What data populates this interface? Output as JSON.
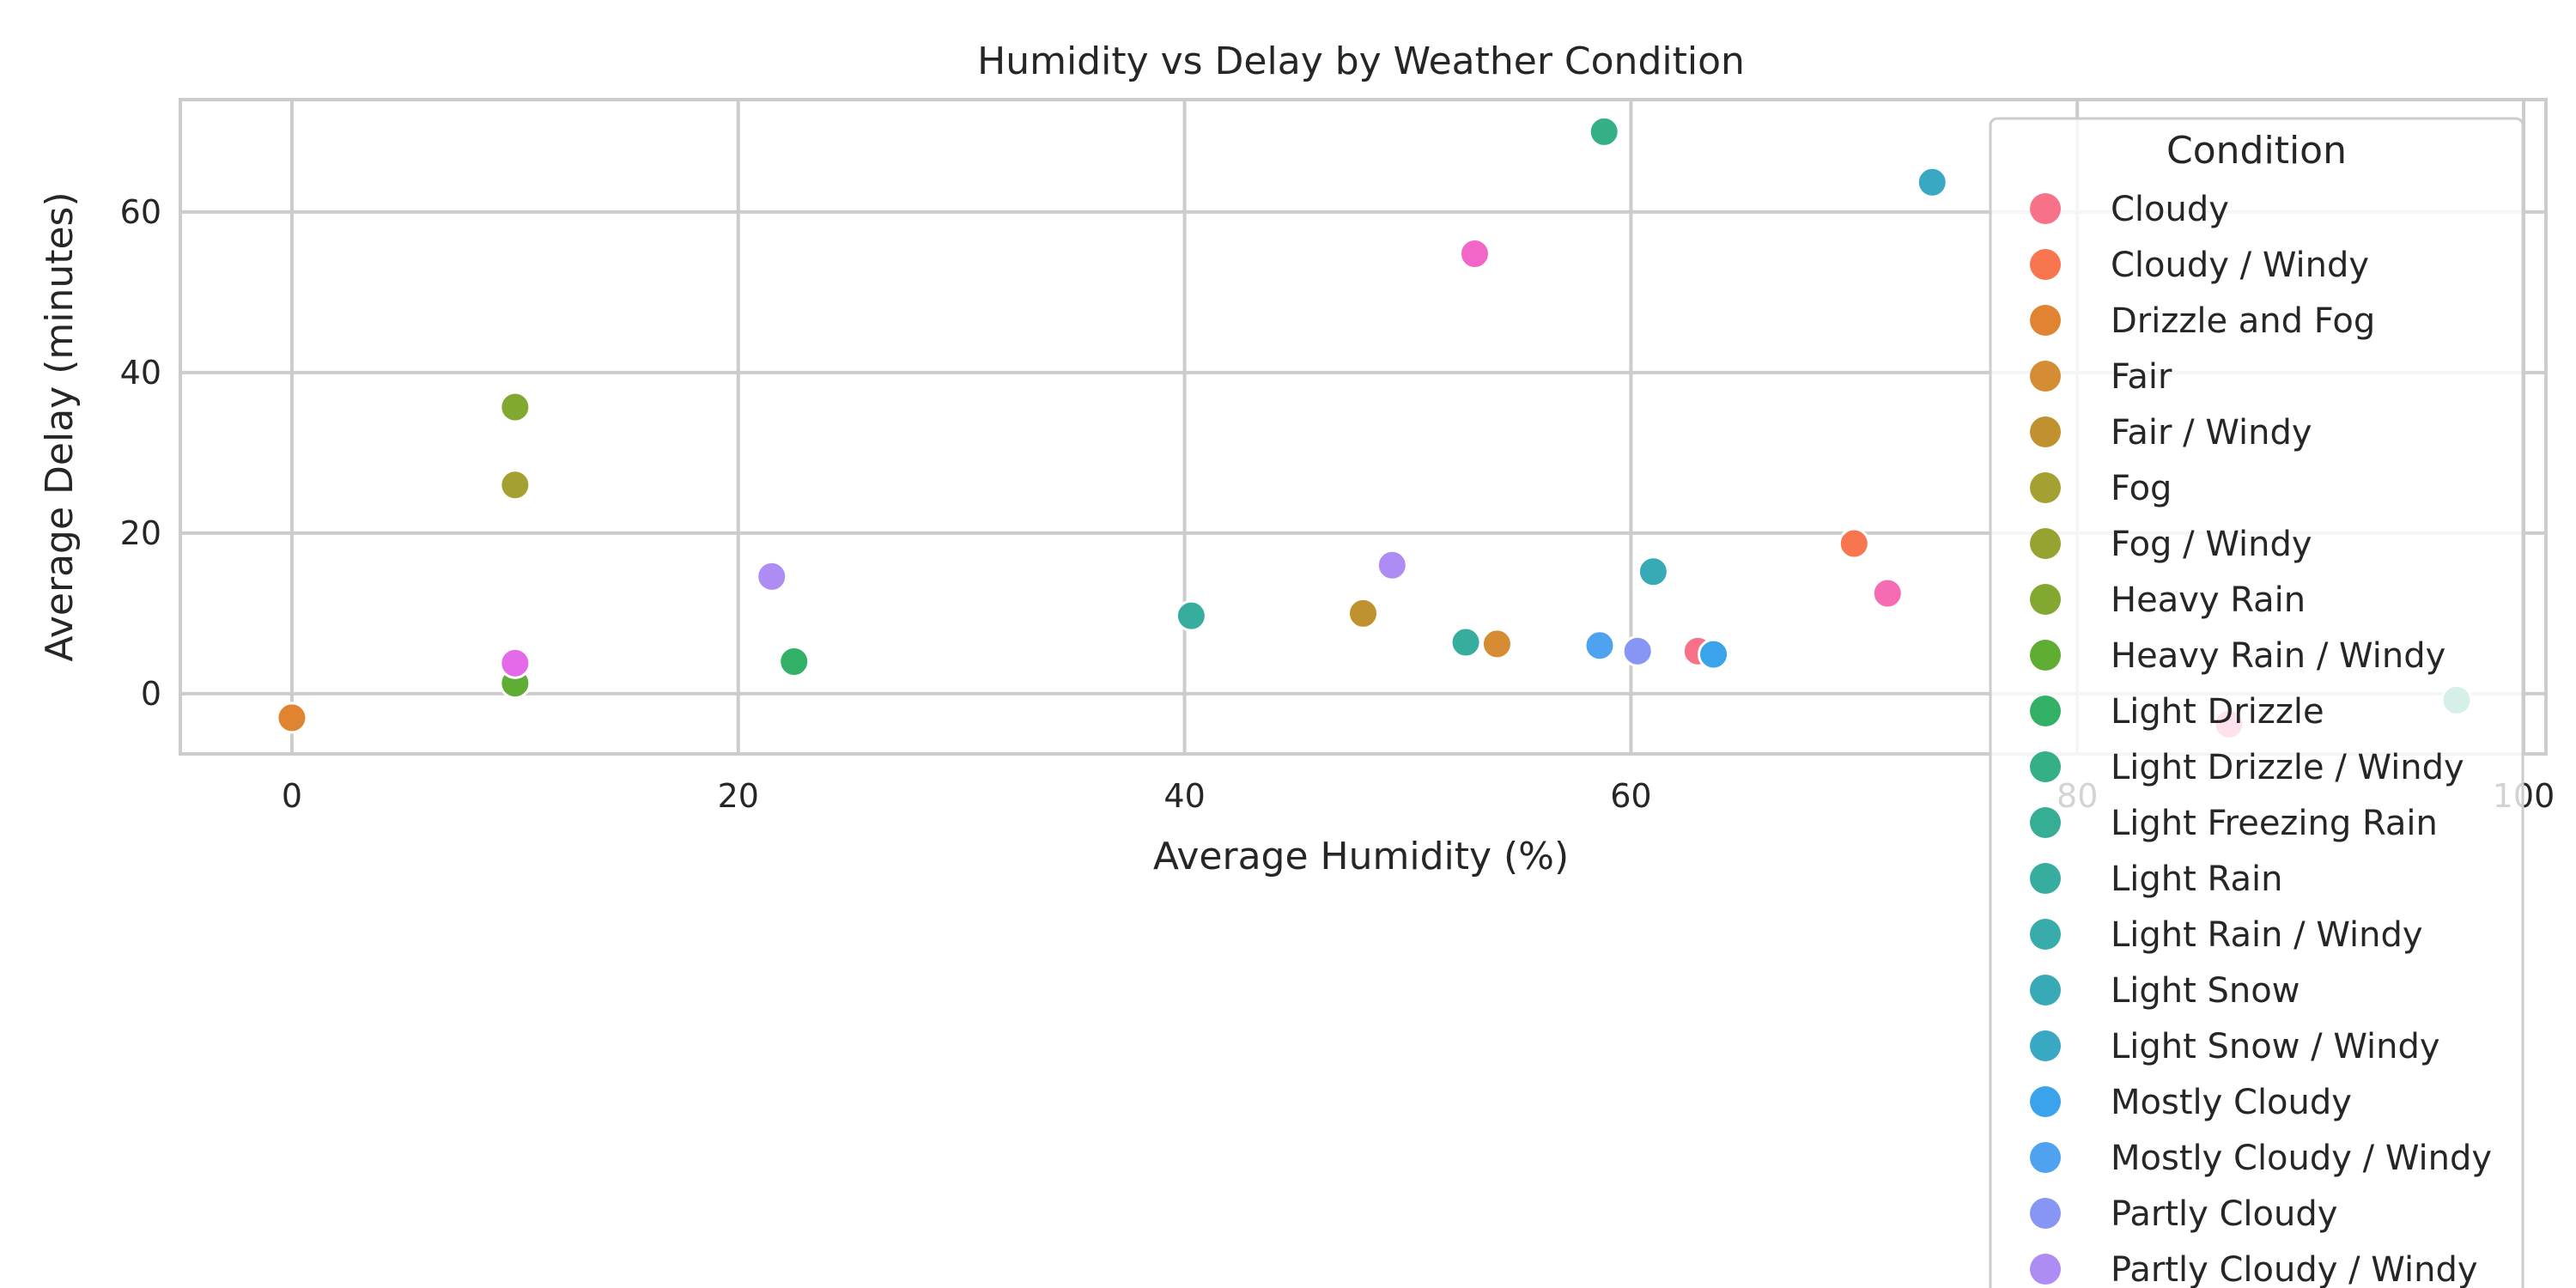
{
  "chart_data": {
    "type": "scatter",
    "title": "Humidity vs Delay by Weather Condition",
    "xlabel": "Average Humidity (%)",
    "ylabel": "Average Delay (minutes)",
    "xlim": [
      -5,
      101
    ],
    "ylim": [
      -7.5,
      74
    ],
    "x_ticks": [
      0,
      20,
      40,
      60,
      80,
      100
    ],
    "y_ticks": [
      0,
      20,
      40,
      60
    ],
    "grid": true,
    "legend_title": "Condition",
    "legend_position": "top-right, extending below the plot",
    "series": [
      {
        "name": "Cloudy",
        "color": "#f77189",
        "points": [
          [
            63,
            5.3
          ]
        ]
      },
      {
        "name": "Cloudy / Windy",
        "color": "#f7754f",
        "points": [
          [
            70,
            18.7
          ]
        ]
      },
      {
        "name": "Drizzle and Fog",
        "color": "#e18432",
        "points": [
          [
            0,
            -3
          ]
        ]
      },
      {
        "name": "Fair",
        "color": "#d58c32",
        "points": [
          [
            54,
            6.2
          ]
        ]
      },
      {
        "name": "Fair / Windy",
        "color": "#c0922f",
        "points": [
          [
            48,
            10
          ]
        ]
      },
      {
        "name": "Fog",
        "color": "#a4a031",
        "points": [
          [
            10,
            26
          ]
        ]
      },
      {
        "name": "Fog / Windy",
        "color": "#96a331",
        "points": []
      },
      {
        "name": "Heavy Rain",
        "color": "#83a831",
        "points": [
          [
            10,
            35.7
          ]
        ]
      },
      {
        "name": "Heavy Rain / Windy",
        "color": "#5fae33",
        "points": [
          [
            10,
            1.3
          ]
        ]
      },
      {
        "name": "Light Drizzle",
        "color": "#32b166",
        "points": [
          [
            22.5,
            4
          ]
        ]
      },
      {
        "name": "Light Drizzle / Windy",
        "color": "#34af86",
        "points": [
          [
            58.8,
            70
          ]
        ]
      },
      {
        "name": "Light Freezing Rain",
        "color": "#35ae93",
        "points": [
          [
            97,
            -0.8
          ]
        ]
      },
      {
        "name": "Light Rain",
        "color": "#36ad9e",
        "points": [
          [
            40.3,
            9.7
          ],
          [
            52.6,
            6.4
          ]
        ]
      },
      {
        "name": "Light Rain / Windy",
        "color": "#37acaa",
        "points": []
      },
      {
        "name": "Light Snow",
        "color": "#38aab5",
        "points": [
          [
            61,
            15.2
          ]
        ]
      },
      {
        "name": "Light Snow / Windy",
        "color": "#39a8c2",
        "points": [
          [
            73.5,
            63.7
          ]
        ]
      },
      {
        "name": "Mostly Cloudy",
        "color": "#3ba3ec",
        "points": [
          [
            63.7,
            4.9
          ]
        ]
      },
      {
        "name": "Mostly Cloudy / Windy",
        "color": "#4ea2f0",
        "points": [
          [
            58.6,
            6
          ]
        ]
      },
      {
        "name": "Partly Cloudy",
        "color": "#8795f4",
        "points": [
          [
            60.3,
            5.3
          ]
        ]
      },
      {
        "name": "Partly Cloudy / Windy",
        "color": "#ad8cf4",
        "points": [
          [
            21.5,
            14.6
          ],
          [
            49.3,
            16
          ]
        ]
      },
      {
        "name": "",
        "color": "#e56ae9",
        "points": [
          [
            10,
            3.8
          ]
        ]
      },
      {
        "name": "",
        "color": "#f266c7",
        "points": [
          [
            53,
            54.8
          ]
        ]
      },
      {
        "name": "",
        "color": "#f56cb5",
        "points": [
          [
            71.5,
            12.5
          ]
        ]
      },
      {
        "name": "",
        "color": "#f66aa5",
        "points": [
          [
            86.8,
            -3.8
          ]
        ]
      }
    ]
  }
}
